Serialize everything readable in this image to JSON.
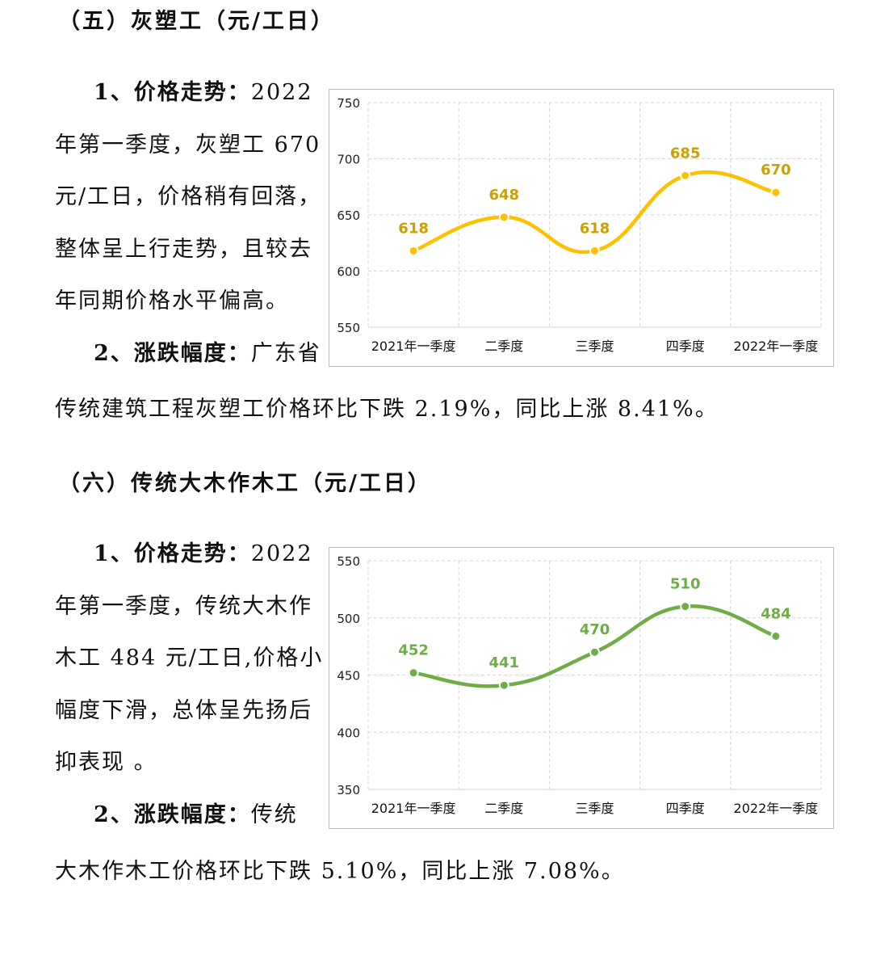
{
  "sections": [
    {
      "heading": "（五）灰塑工（元/工日）",
      "lines": [
        {
          "bold": "1、价格走势：",
          "text": "2022"
        },
        {
          "bold": "",
          "text": "年第一季度，灰塑工 670"
        },
        {
          "bold": "",
          "text": "元/工日，价格稍有回落，"
        },
        {
          "bold": "",
          "text": "整体呈上行走势，且较去"
        },
        {
          "bold": "",
          "text": "年同期价格水平偏高。"
        },
        {
          "bold": "2、涨跌幅度：",
          "text": "广东省"
        }
      ],
      "full_line": "传统建筑工程灰塑工价格环比下跌 2.19%，同比上涨 8.41%。"
    },
    {
      "heading": "（六）传统大木作木工（元/工日）",
      "lines": [
        {
          "bold": "1、价格走势：",
          "text": "2022"
        },
        {
          "bold": "",
          "text": "年第一季度，传统大木作"
        },
        {
          "bold": "",
          "text": "木工 484 元/工日,价格小"
        },
        {
          "bold": "",
          "text": "幅度下滑，总体呈先扬后"
        },
        {
          "bold": "",
          "text": "抑表现 。"
        },
        {
          "bold": "2、涨跌幅度：",
          "text": "传统"
        }
      ],
      "full_line": "大木作木工价格环比下跌 5.10%，同比上涨 7.08%。"
    }
  ],
  "chart_data": [
    {
      "type": "line",
      "categories": [
        "2021年一季度",
        "二季度",
        "三季度",
        "四季度",
        "2022年一季度"
      ],
      "values": [
        618,
        648,
        618,
        685,
        670
      ],
      "ylim": [
        550,
        750
      ],
      "yticks": [
        550,
        600,
        650,
        700,
        750
      ],
      "color": "#FFC000",
      "label_color": "#C9A100",
      "grid": true,
      "smooth": true
    },
    {
      "type": "line",
      "categories": [
        "2021年一季度",
        "二季度",
        "三季度",
        "四季度",
        "2022年一季度"
      ],
      "values": [
        452,
        441,
        470,
        510,
        484
      ],
      "ylim": [
        350,
        550
      ],
      "yticks": [
        350,
        400,
        450,
        500,
        550
      ],
      "color": "#70AD47",
      "label_color": "#70AD47",
      "grid": true,
      "smooth": true
    }
  ]
}
